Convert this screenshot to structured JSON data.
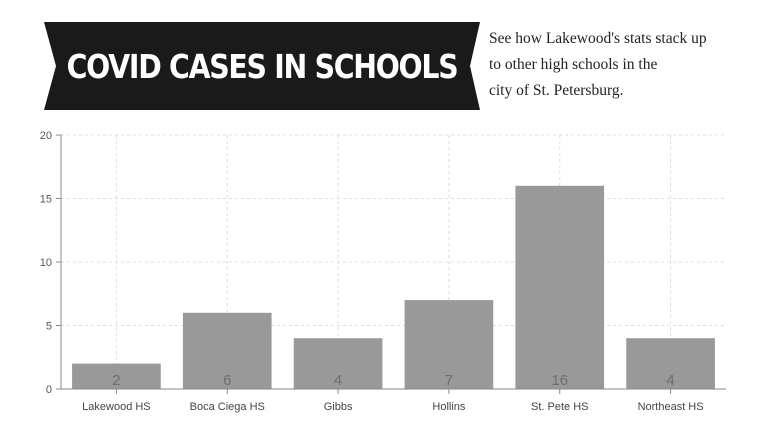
{
  "banner": {
    "title": "COVID CASES IN  SCHOOLS"
  },
  "blurb": "See how Lakewood's stats stack up\nto other high schools in the\ncity of St. Petersburg.",
  "colors": {
    "banner_bg": "#1a1a1a",
    "bar": "#999999",
    "bar_label": "#6e6e6e",
    "grid": "#dddddd"
  },
  "chart_data": {
    "type": "bar",
    "categories": [
      "Lakewood HS",
      "Boca Ciega HS",
      "Gibbs",
      "Hollins",
      "St. Pete HS",
      "Northeast HS"
    ],
    "values": [
      2,
      6,
      4,
      7,
      16,
      4
    ],
    "ylim": [
      0,
      20
    ],
    "yticks": [
      0,
      5,
      10,
      15,
      20
    ],
    "grid": true,
    "data_labels": true
  }
}
